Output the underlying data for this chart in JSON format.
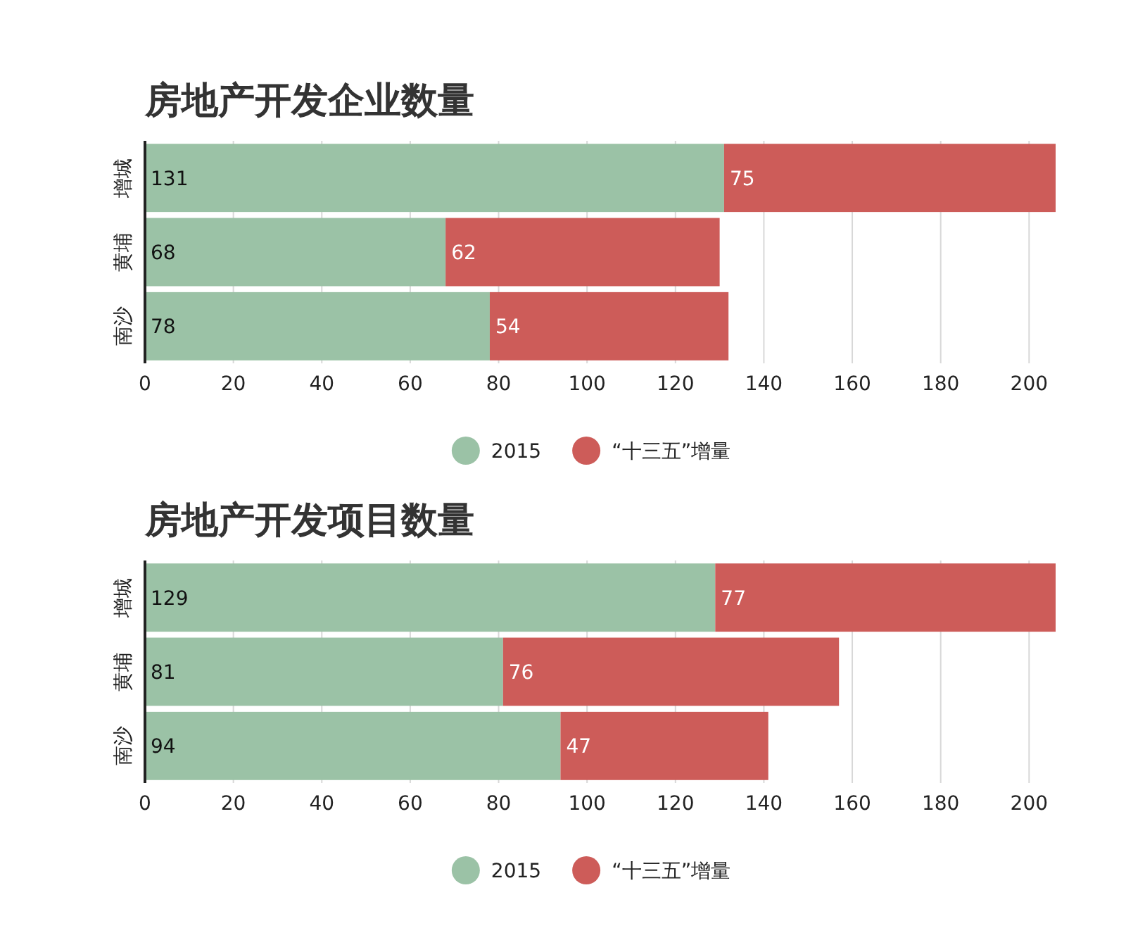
{
  "chart_data": [
    {
      "type": "bar",
      "orientation": "horizontal",
      "stacked": true,
      "title": "房地产开发企业数量",
      "categories": [
        "增城",
        "黄埔",
        "南沙"
      ],
      "series": [
        {
          "name": "2015",
          "color": "#9bc2a6",
          "values": [
            131,
            68,
            78
          ]
        },
        {
          "name": "“十三五”增量",
          "color": "#cd5c59",
          "values": [
            75,
            62,
            54
          ]
        }
      ],
      "xlim": [
        0,
        206
      ],
      "xticks": [
        0,
        20,
        40,
        60,
        80,
        100,
        120,
        140,
        160,
        180,
        200
      ],
      "grid": "x",
      "legend": "bottom",
      "data_labels": true
    },
    {
      "type": "bar",
      "orientation": "horizontal",
      "stacked": true,
      "title": "房地产开发项目数量",
      "categories": [
        "增城",
        "黄埔",
        "南沙"
      ],
      "series": [
        {
          "name": "2015",
          "color": "#9bc2a6",
          "values": [
            129,
            81,
            94
          ]
        },
        {
          "name": "“十三五”增量",
          "color": "#cd5c59",
          "values": [
            77,
            76,
            47
          ]
        }
      ],
      "xlim": [
        0,
        206
      ],
      "xticks": [
        0,
        20,
        40,
        60,
        80,
        100,
        120,
        140,
        160,
        180,
        200
      ],
      "grid": "x",
      "legend": "bottom",
      "data_labels": true
    }
  ]
}
